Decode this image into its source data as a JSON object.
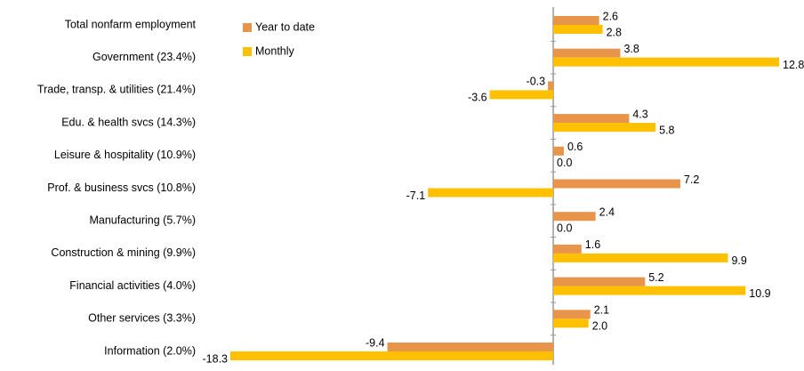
{
  "chart_data": {
    "type": "hbar",
    "categories": [
      "Total nonfarm employment",
      "Government (23.4%)",
      "Trade, transp. & utilities (21.4%)",
      "Edu. & health svcs (14.3%)",
      "Leisure & hospitality (10.9%)",
      "Prof. & business svcs (10.8%)",
      "Manufacturing (5.7%)",
      "Construction & mining (9.9%)",
      "Financial activities (4.0%)",
      "Other services (3.3%)",
      "Information (2.0%)"
    ],
    "series": [
      {
        "name": "Year to date",
        "color": "#e8944a",
        "values": [
          2.6,
          3.8,
          -0.3,
          4.3,
          0.6,
          7.2,
          2.4,
          1.6,
          5.2,
          2.1,
          -9.4
        ],
        "value_labels": [
          "2.6",
          "3.8",
          "-0.3",
          "4.3",
          "0.6",
          "7.2",
          "2.4",
          "1.6",
          "5.2",
          "2.1",
          "-9.4"
        ]
      },
      {
        "name": "Monthly",
        "color": "#ffc000",
        "values": [
          2.8,
          12.8,
          -3.6,
          5.8,
          0.0,
          -7.1,
          0.0,
          9.9,
          10.9,
          2.0,
          -18.3
        ],
        "value_labels": [
          "2.8",
          "12.8",
          "-3.6",
          "5.8",
          "0.0",
          "-7.1",
          "0.0",
          "9.9",
          "10.9",
          "2.0",
          "-18.3"
        ]
      }
    ],
    "legend": "top-left"
  }
}
